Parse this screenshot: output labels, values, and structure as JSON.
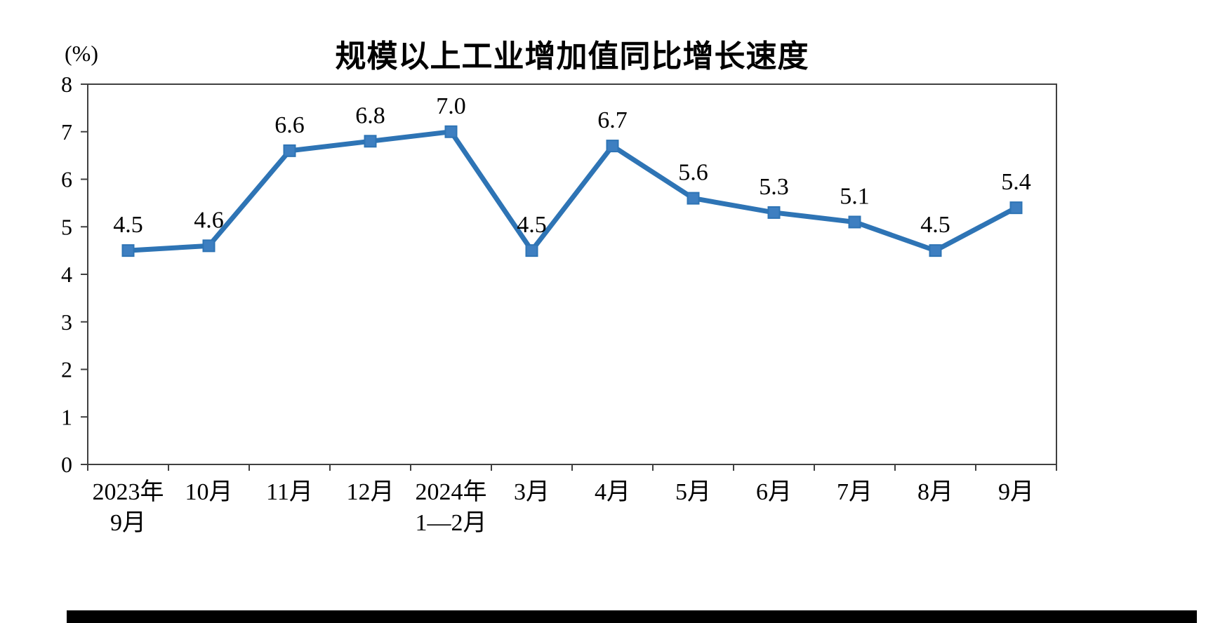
{
  "chart_data": {
    "type": "line",
    "title": "规模以上工业增加值同比增长速度",
    "ylabel": "(%)",
    "xlabel": "",
    "ylim": [
      0,
      8
    ],
    "y_ticks": [
      0,
      1,
      2,
      3,
      4,
      5,
      6,
      7,
      8
    ],
    "categories": [
      "2023年\n9月",
      "10月",
      "11月",
      "12月",
      "2024年\n1—2月",
      "3月",
      "4月",
      "5月",
      "6月",
      "7月",
      "8月",
      "9月"
    ],
    "values": [
      4.5,
      4.6,
      6.6,
      6.8,
      7.0,
      4.5,
      6.7,
      5.6,
      5.3,
      5.1,
      4.5,
      5.4
    ],
    "series_name": "工业增加值同比增长速度",
    "series_color": "#2E74B5",
    "marker_color": "#3E7FC1",
    "axis_color": "#404040",
    "label_color": "#000000",
    "grid": false,
    "legend": false
  }
}
